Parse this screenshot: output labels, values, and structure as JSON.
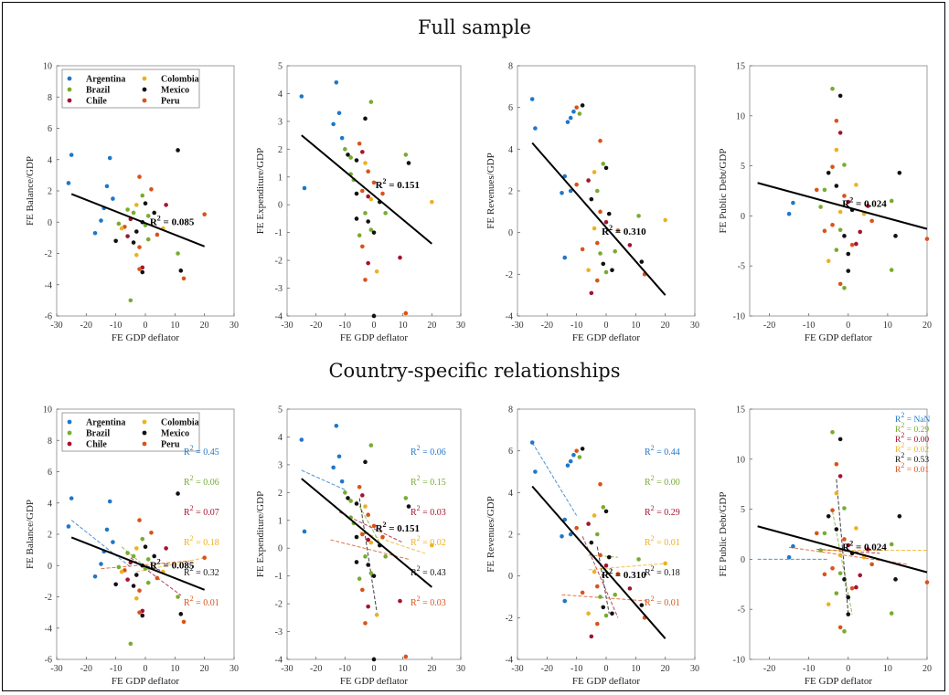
{
  "titles": {
    "top": "Full sample",
    "bottom": "Country-specific relationships"
  },
  "colors": {
    "Argentina": "#1f77c8",
    "Brazil": "#77ac30",
    "Chile": "#a2142f",
    "Colombia": "#edb120",
    "Mexico": "#111111",
    "Peru": "#d95319",
    "pooled": "#000000"
  },
  "legend": {
    "entries": [
      "Argentina",
      "Colombia",
      "Brazil",
      "Mexico",
      "Chile",
      "Peru"
    ]
  },
  "chart_data": [
    {
      "type": "scatter",
      "ylabel": "FE Balance/GDP",
      "xlabel": "FE GDP deflator",
      "xlim": [
        -30,
        30
      ],
      "ylim": [
        -6,
        10
      ],
      "xticks": [
        -30,
        -20,
        -10,
        0,
        10,
        20,
        30
      ],
      "yticks": [
        -6,
        -4,
        -2,
        0,
        2,
        4,
        6,
        8,
        10
      ],
      "fit": {
        "x1": -25,
        "y1": 1.8,
        "x2": 20,
        "y2": -1.55
      },
      "r2_label": "R² = 0.085",
      "r2_at": [
        1.5,
        -0.2
      ],
      "points": [
        [
          -25,
          4.3
        ],
        [
          -26,
          2.5
        ],
        [
          -13,
          2.3
        ],
        [
          -12,
          4.1
        ],
        [
          -14,
          0.9
        ],
        [
          -11,
          1.5
        ],
        [
          -9,
          -0.1
        ],
        [
          -15,
          0.1
        ],
        [
          -17,
          -0.7
        ],
        [
          -10,
          -1.2
        ],
        [
          -7,
          -0.3
        ],
        [
          -5,
          0.2
        ],
        [
          -3,
          1.1
        ],
        [
          -2,
          2.9
        ],
        [
          -1,
          1.7
        ],
        [
          0,
          1.2
        ],
        [
          -4,
          0.6
        ],
        [
          -3,
          -0.6
        ],
        [
          -2,
          -1.6
        ],
        [
          -6,
          -0.9
        ],
        [
          -8,
          -0.4
        ],
        [
          2,
          2.1
        ],
        [
          1,
          0.4
        ],
        [
          -1,
          0.0
        ],
        [
          0,
          -0.2
        ],
        [
          3,
          0.6
        ],
        [
          4,
          -0.8
        ],
        [
          -1,
          -2.9
        ],
        [
          -3,
          -2.1
        ],
        [
          -2,
          -3.0
        ],
        [
          -5,
          -5.0
        ],
        [
          11,
          4.6
        ],
        [
          11,
          -2.0
        ],
        [
          12,
          -3.1
        ],
        [
          13,
          -3.6
        ],
        [
          7,
          1.1
        ],
        [
          6,
          -0.4
        ],
        [
          20,
          0.5
        ],
        [
          1,
          -1.1
        ],
        [
          -4,
          -1.3
        ],
        [
          -6,
          0.8
        ],
        [
          -1,
          -3.2
        ]
      ]
    },
    {
      "type": "scatter",
      "ylabel": "FE Expenditure/GDP",
      "xlabel": "FE GDP deflator",
      "xlim": [
        -30,
        30
      ],
      "ylim": [
        -4,
        5
      ],
      "xticks": [
        -30,
        -20,
        -10,
        0,
        10,
        20,
        30
      ],
      "yticks": [
        -4,
        -3,
        -2,
        -1,
        0,
        1,
        2,
        3,
        4,
        5
      ],
      "fit": {
        "x1": -25,
        "y1": 2.5,
        "x2": 20,
        "y2": -1.4
      },
      "r2_label": "R² = 0.151",
      "r2_at": [
        0.5,
        0.6
      ],
      "points": [
        [
          -25,
          3.9
        ],
        [
          -24,
          0.6
        ],
        [
          -13,
          4.4
        ],
        [
          -12,
          3.3
        ],
        [
          -14,
          2.9
        ],
        [
          -11,
          2.4
        ],
        [
          -10,
          2.0
        ],
        [
          -9,
          1.8
        ],
        [
          -8,
          1.7
        ],
        [
          -6,
          1.6
        ],
        [
          -5,
          2.2
        ],
        [
          -4,
          1.9
        ],
        [
          -3,
          1.5
        ],
        [
          -2,
          1.2
        ],
        [
          -1,
          3.7
        ],
        [
          -3,
          3.1
        ],
        [
          -7,
          0.9
        ],
        [
          -6,
          0.4
        ],
        [
          -4,
          0.5
        ],
        [
          -2,
          0.3
        ],
        [
          -1,
          0.2
        ],
        [
          0,
          0.8
        ],
        [
          -3,
          -0.3
        ],
        [
          -2,
          -0.6
        ],
        [
          -1,
          -0.9
        ],
        [
          0,
          -1.0
        ],
        [
          -4,
          -1.5
        ],
        [
          -2,
          -2.1
        ],
        [
          1,
          -2.4
        ],
        [
          -3,
          -2.7
        ],
        [
          -5,
          -1.1
        ],
        [
          0,
          -4.0
        ],
        [
          11,
          1.8
        ],
        [
          12,
          1.5
        ],
        [
          11,
          -3.9
        ],
        [
          9,
          -1.9
        ],
        [
          20,
          0.1
        ],
        [
          3,
          0.4
        ],
        [
          4,
          -0.3
        ],
        [
          2,
          0.1
        ],
        [
          -8,
          1.1
        ],
        [
          -6,
          -0.5
        ]
      ]
    },
    {
      "type": "scatter",
      "ylabel": "FE Revenues/GDP",
      "xlabel": "FE GDP deflator",
      "xlim": [
        -30,
        30
      ],
      "ylim": [
        -4,
        8
      ],
      "xticks": [
        -30,
        -20,
        -10,
        0,
        10,
        20,
        30
      ],
      "yticks": [
        -4,
        -2,
        0,
        2,
        4,
        6,
        8
      ],
      "fit": {
        "x1": -25,
        "y1": 4.3,
        "x2": 20,
        "y2": -3.0
      },
      "r2_label": "R² = 0.310",
      "r2_at": [
        -1.5,
        -0.1
      ],
      "points": [
        [
          -25,
          6.4
        ],
        [
          -24,
          5.0
        ],
        [
          -13,
          5.3
        ],
        [
          -12,
          5.5
        ],
        [
          -11,
          5.8
        ],
        [
          -10,
          6.0
        ],
        [
          -9,
          5.7
        ],
        [
          -8,
          6.1
        ],
        [
          -14,
          2.7
        ],
        [
          -12,
          2.0
        ],
        [
          -10,
          2.3
        ],
        [
          -6,
          2.5
        ],
        [
          -4,
          2.9
        ],
        [
          -2,
          4.4
        ],
        [
          -1,
          3.3
        ],
        [
          0,
          3.1
        ],
        [
          -3,
          2.0
        ],
        [
          -5,
          1.6
        ],
        [
          -2,
          1.0
        ],
        [
          0,
          0.5
        ],
        [
          -4,
          0.2
        ],
        [
          -3,
          -0.5
        ],
        [
          -2,
          -1.0
        ],
        [
          -1,
          -1.5
        ],
        [
          0,
          -1.9
        ],
        [
          2,
          -1.8
        ],
        [
          -3,
          -2.3
        ],
        [
          -5,
          -2.9
        ],
        [
          -6,
          -1.8
        ],
        [
          -8,
          -0.8
        ],
        [
          -14,
          -1.2
        ],
        [
          -15,
          1.9
        ],
        [
          11,
          0.8
        ],
        [
          12,
          -1.4
        ],
        [
          13,
          -2.0
        ],
        [
          8,
          -0.6
        ],
        [
          20,
          0.6
        ],
        [
          4,
          0.1
        ],
        [
          3,
          -0.9
        ],
        [
          1,
          0.9
        ]
      ]
    },
    {
      "type": "scatter",
      "ylabel": "FE Public Debt/GDP",
      "xlabel": "FE GDP deflator",
      "xlim": [
        -25,
        20
      ],
      "ylim": [
        -10,
        15
      ],
      "xticks": [
        -20,
        -10,
        0,
        10,
        20
      ],
      "yticks": [
        -10,
        -5,
        0,
        5,
        10,
        15
      ],
      "fit": {
        "x1": -23,
        "y1": 3.3,
        "x2": 20,
        "y2": -1.3
      },
      "r2_label": "R² = 0.024",
      "r2_at": [
        -1.5,
        0.9
      ],
      "points": [
        [
          -4,
          12.7
        ],
        [
          -2,
          12.0
        ],
        [
          -3,
          9.5
        ],
        [
          -2,
          8.3
        ],
        [
          -3,
          6.6
        ],
        [
          -4,
          4.9
        ],
        [
          -1,
          5.1
        ],
        [
          -5,
          4.3
        ],
        [
          -6,
          2.6
        ],
        [
          -3,
          3.0
        ],
        [
          -1,
          2.0
        ],
        [
          0,
          1.4
        ],
        [
          -2,
          0.4
        ],
        [
          -4,
          -0.9
        ],
        [
          -2,
          -1.4
        ],
        [
          -1,
          -2.0
        ],
        [
          -3,
          -3.4
        ],
        [
          0,
          -3.8
        ],
        [
          1,
          -2.9
        ],
        [
          2,
          -2.8
        ],
        [
          -5,
          -4.5
        ],
        [
          -2,
          -6.8
        ],
        [
          -1,
          -7.2
        ],
        [
          0,
          -5.5
        ],
        [
          -14,
          1.3
        ],
        [
          -15,
          0.2
        ],
        [
          -8,
          2.6
        ],
        [
          3,
          -1.6
        ],
        [
          4,
          0.2
        ],
        [
          6,
          -0.5
        ],
        [
          11,
          1.5
        ],
        [
          12,
          -2.0
        ],
        [
          11,
          -5.4
        ],
        [
          13,
          4.3
        ],
        [
          20,
          -2.3
        ],
        [
          5,
          1.0
        ],
        [
          2,
          3.1
        ],
        [
          -6,
          -1.5
        ],
        [
          -7,
          0.9
        ],
        [
          1,
          0.6
        ]
      ]
    }
  ],
  "country_r2": [
    [
      "R² = 0.45",
      "R² = 0.06",
      "R² = 0.07",
      "R² = 0.18",
      "R² = 0.32",
      "R² = 0.01"
    ],
    [
      "R² = 0.06",
      "R² = 0.15",
      "R² = 0.03",
      "R² = 0.02",
      "R² = 0.43",
      "R² = 0.03"
    ],
    [
      "R² = 0.44",
      "R² = 0.00",
      "R² = 0.29",
      "R² = 0.01",
      "R² = 0.18",
      "R² = 0.01"
    ],
    [
      "R² = NaN",
      "R² = 0.29",
      "R² = 0.00",
      "R² = 0.02",
      "R² = 0.53",
      "R² = 0.01"
    ]
  ]
}
